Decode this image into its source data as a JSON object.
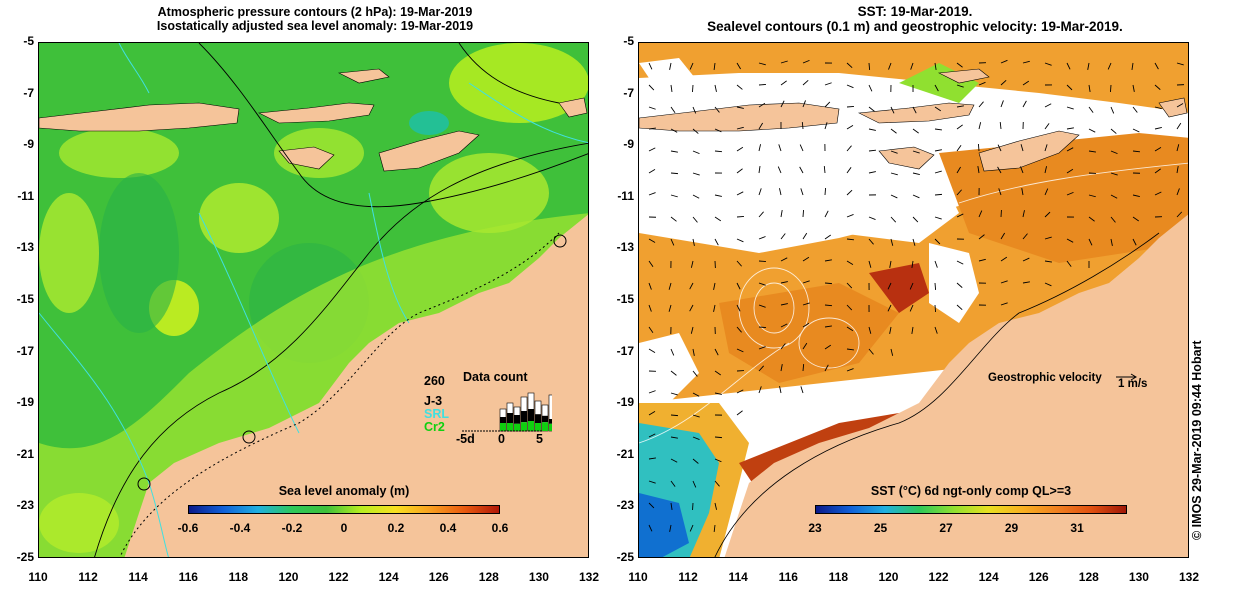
{
  "left_panel": {
    "title_line1": "Atmospheric pressure contours (2 hPa): 19-Mar-2019",
    "title_line2": "Isostatically adjusted sea level anomaly: 19-Mar-2019",
    "colorbar": {
      "title": "Sea level anomaly (m)",
      "ticks": [
        "-0.6",
        "-0.4",
        "-0.2",
        "0",
        "0.2",
        "0.4",
        "0.6"
      ],
      "colors": [
        "#0a1a8a",
        "#1060d8",
        "#20b0e0",
        "#2dc85a",
        "#3fc03a",
        "#b8ee20",
        "#f8e020",
        "#f8a020",
        "#e85a10",
        "#b01808"
      ]
    },
    "data_count": {
      "title": "Data count",
      "max_label": "260",
      "series": [
        {
          "label": "J-3",
          "color": "#000000"
        },
        {
          "label": "SRL",
          "color": "#40e0e0"
        },
        {
          "label": "Cr2",
          "color": "#10d010"
        }
      ],
      "x_ticks": [
        "-5d",
        "0",
        "5"
      ],
      "bars": [
        {
          "total": 0.55,
          "j3": 0.35,
          "cr2": 0.2
        },
        {
          "total": 0.7,
          "j3": 0.45,
          "cr2": 0.2
        },
        {
          "total": 0.6,
          "j3": 0.4,
          "cr2": 0.18
        },
        {
          "total": 0.85,
          "j3": 0.5,
          "cr2": 0.22
        },
        {
          "total": 0.95,
          "j3": 0.55,
          "cr2": 0.25
        },
        {
          "total": 0.75,
          "j3": 0.42,
          "cr2": 0.2
        },
        {
          "total": 0.65,
          "j3": 0.38,
          "cr2": 0.22
        },
        {
          "total": 0.9,
          "j3": 0.3,
          "cr2": 0.18
        },
        {
          "total": 0.8,
          "j3": 0.4,
          "cr2": 0.2
        },
        {
          "total": 0.5,
          "j3": 0.25,
          "cr2": 0.22
        }
      ]
    }
  },
  "right_panel": {
    "title_line1": "SST: 19-Mar-2019.",
    "title_line2": "Sealevel contours (0.1 m) and geostrophic velocity: 19-Mar-2019.",
    "colorbar": {
      "title": "SST (°C) 6d ngt-only comp QL>=3",
      "ticks": [
        "23",
        "25",
        "27",
        "29",
        "31"
      ],
      "colors": [
        "#0a1a8a",
        "#1060d8",
        "#20b0e0",
        "#2dc85a",
        "#90e030",
        "#e8e020",
        "#f8b020",
        "#f08020",
        "#e05010",
        "#a01808"
      ]
    },
    "velocity_label": "Geostrophic velocity",
    "velocity_scale": "1 m/s",
    "credit": "© IMOS 29-Mar-2019 09:44 Hobart"
  },
  "axes": {
    "x_ticks": [
      "110",
      "112",
      "114",
      "116",
      "118",
      "120",
      "122",
      "124",
      "126",
      "128",
      "130",
      "132"
    ],
    "y_ticks": [
      "-5",
      "-7",
      "-9",
      "-11",
      "-13",
      "-15",
      "-17",
      "-19",
      "-21",
      "-23",
      "-25"
    ],
    "lon_range": [
      110,
      132
    ],
    "lat_range": [
      -25,
      -5
    ]
  },
  "colors": {
    "land": "#f5c49a",
    "ocean_green": "#3fc03a",
    "warm_sst": "#f0a030",
    "cloud": "#ffffff"
  }
}
